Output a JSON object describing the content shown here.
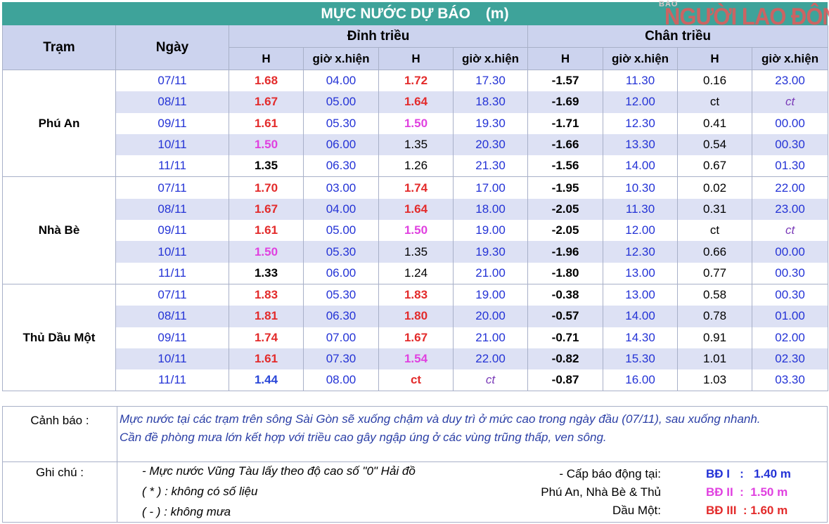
{
  "header": {
    "title": "MỰC NƯỚC DỰ BÁO",
    "unit": "(m)",
    "logo_small": "BÁO",
    "logo_main": "NGƯỜI LAO ĐỘNG"
  },
  "columns": {
    "station": "Trạm",
    "date": "Ngày",
    "high_tide": "Đỉnh triều",
    "low_tide": "Chân triều",
    "h": "H",
    "time": "giờ x.hiện"
  },
  "stations": [
    {
      "name": "Phú An",
      "rows": [
        {
          "date": "07/11",
          "h1": "1.68",
          "t1": "04.00",
          "h2": "1.72",
          "t2": "17.30",
          "l1": "-1.57",
          "lt1": "11.30",
          "l2": "0.16",
          "lt2": "23.00"
        },
        {
          "date": "08/11",
          "h1": "1.67",
          "t1": "05.00",
          "h2": "1.64",
          "t2": "18.30",
          "l1": "-1.69",
          "lt1": "12.00",
          "l2": "ct",
          "lt2": "ct"
        },
        {
          "date": "09/11",
          "h1": "1.61",
          "t1": "05.30",
          "h2": "1.50",
          "t2": "19.30",
          "l1": "-1.71",
          "lt1": "12.30",
          "l2": "0.41",
          "lt2": "00.00"
        },
        {
          "date": "10/11",
          "h1": "1.50",
          "t1": "06.00",
          "h2": "1.35",
          "t2": "20.30",
          "l1": "-1.66",
          "lt1": "13.30",
          "l2": "0.54",
          "lt2": "00.30"
        },
        {
          "date": "11/11",
          "h1": "1.35",
          "t1": "06.30",
          "h2": "1.26",
          "t2": "21.30",
          "l1": "-1.56",
          "lt1": "14.00",
          "l2": "0.67",
          "lt2": "01.30"
        }
      ]
    },
    {
      "name": "Nhà Bè",
      "rows": [
        {
          "date": "07/11",
          "h1": "1.70",
          "t1": "03.00",
          "h2": "1.74",
          "t2": "17.00",
          "l1": "-1.95",
          "lt1": "10.30",
          "l2": "0.02",
          "lt2": "22.00"
        },
        {
          "date": "08/11",
          "h1": "1.67",
          "t1": "04.00",
          "h2": "1.64",
          "t2": "18.00",
          "l1": "-2.05",
          "lt1": "11.30",
          "l2": "0.31",
          "lt2": "23.00"
        },
        {
          "date": "09/11",
          "h1": "1.61",
          "t1": "05.00",
          "h2": "1.50",
          "t2": "19.00",
          "l1": "-2.05",
          "lt1": "12.00",
          "l2": "ct",
          "lt2": "ct"
        },
        {
          "date": "10/11",
          "h1": "1.50",
          "t1": "05.30",
          "h2": "1.35",
          "t2": "19.30",
          "l1": "-1.96",
          "lt1": "12.30",
          "l2": "0.66",
          "lt2": "00.00"
        },
        {
          "date": "11/11",
          "h1": "1.33",
          "t1": "06.00",
          "h2": "1.24",
          "t2": "21.00",
          "l1": "-1.80",
          "lt1": "13.00",
          "l2": "0.77",
          "lt2": "00.30"
        }
      ]
    },
    {
      "name": "Thủ Dầu Một",
      "rows": [
        {
          "date": "07/11",
          "h1": "1.83",
          "t1": "05.30",
          "h2": "1.83",
          "t2": "19.00",
          "l1": "-0.38",
          "lt1": "13.00",
          "l2": "0.58",
          "lt2": "00.30"
        },
        {
          "date": "08/11",
          "h1": "1.81",
          "t1": "06.30",
          "h2": "1.80",
          "t2": "20.00",
          "l1": "-0.57",
          "lt1": "14.00",
          "l2": "0.78",
          "lt2": "01.00"
        },
        {
          "date": "09/11",
          "h1": "1.74",
          "t1": "07.00",
          "h2": "1.67",
          "t2": "21.00",
          "l1": "-0.71",
          "lt1": "14.30",
          "l2": "0.91",
          "lt2": "02.00"
        },
        {
          "date": "10/11",
          "h1": "1.61",
          "t1": "07.30",
          "h2": "1.54",
          "t2": "22.00",
          "l1": "-0.82",
          "lt1": "15.30",
          "l2": "1.01",
          "lt2": "02.30"
        },
        {
          "date": "11/11",
          "h1": "1.44",
          "t1": "08.00",
          "h2": "ct",
          "t2": "ct",
          "l1": "-0.87",
          "lt1": "16.00",
          "l2": "1.03",
          "lt2": "03.30"
        }
      ]
    }
  ],
  "notes": {
    "warning_label": "Cảnh báo :",
    "warning_line1": "Mực nước tại các trạm trên sông Sài Gòn sẽ xuống chậm và duy trì ở mức cao trong ngày đầu (07/11), sau xuống nhanh.",
    "warning_line2": "Cần đề phòng mưa lớn kết hợp với triều cao gây ngập úng ở các vùng trũng thấp, ven sông.",
    "note_label": "Ghi chú :",
    "note1": "- Mực nước Vũng Tàu lấy theo độ cao số \"0\" Hải đồ",
    "note2": "( * ) :  không có số liệu",
    "note3": "( - )  :   không mưa",
    "alarm_line1": "- Cấp báo động tại:",
    "alarm_line2": "Phú An, Nhà Bè & Thủ",
    "alarm_line3": "Dầu Một:",
    "alarm1": "BĐ I   :   1.40 m",
    "alarm2": "BĐ II  :  1.50 m",
    "alarm3": "BĐ III  : 1.60 m"
  },
  "colors": {
    "header_bg": "#3ea39a",
    "subheader_bg": "#ccd3ee",
    "alt_row_bg": "#dde1f4",
    "alarm1": "#2433d6",
    "alarm2": "#e041e0",
    "alarm3": "#e32b2b"
  }
}
